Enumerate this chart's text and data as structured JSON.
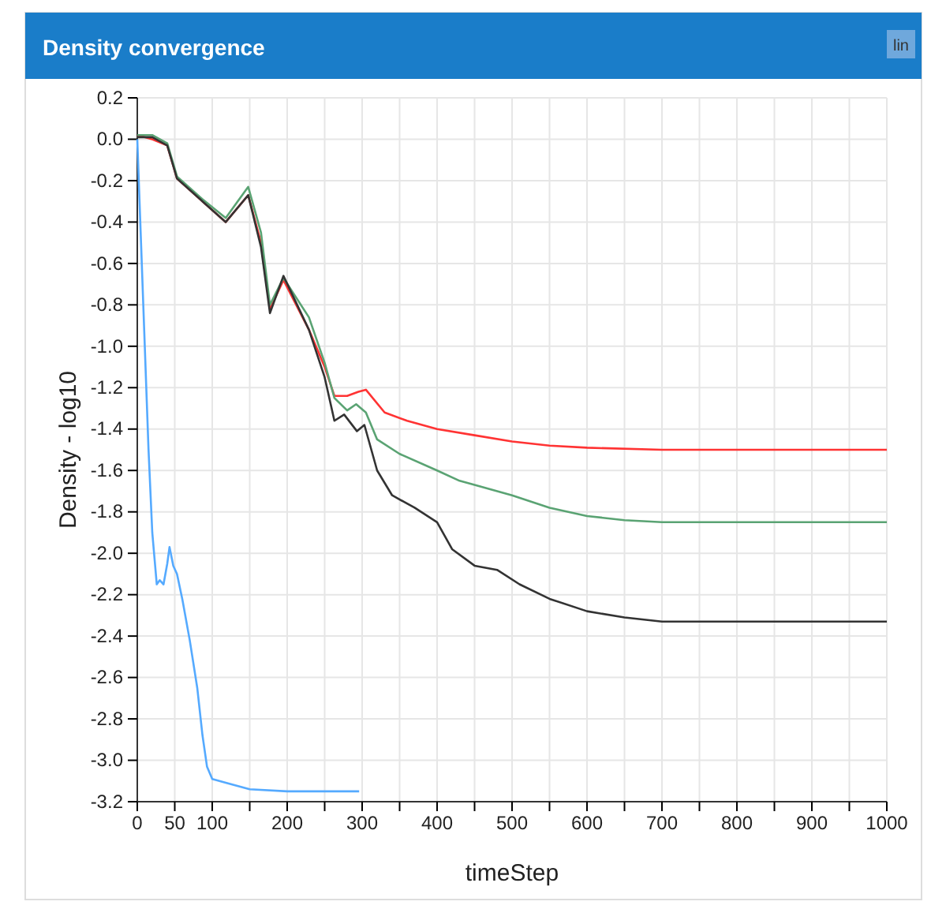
{
  "chart_data": {
    "type": "line",
    "title": "Density convergence",
    "xlabel": "timeStep",
    "ylabel": "Density - log10",
    "annotations": [
      "lin"
    ],
    "xlim": [
      0,
      1000
    ],
    "ylim": [
      -3.2,
      0.2
    ],
    "xticks": [
      0,
      50,
      100,
      {
        "value": 150,
        "label": null
      },
      200,
      {
        "value": 250,
        "label": null
      },
      300,
      {
        "value": 350,
        "label": null
      },
      400,
      {
        "value": 450,
        "label": null
      },
      500,
      {
        "value": 550,
        "label": null
      },
      600,
      {
        "value": 650,
        "label": null
      },
      700,
      {
        "value": 750,
        "label": null
      },
      800,
      {
        "value": 850,
        "label": null
      },
      900,
      {
        "value": 950,
        "label": null
      },
      1000
    ],
    "yticks": [
      0.2,
      {
        "value": 0,
        "label": "0.0"
      },
      -0.2,
      -0.4,
      -0.6,
      -0.8,
      {
        "value": -1,
        "label": "-1.0"
      },
      -1.2,
      -1.4,
      -1.6,
      -1.8,
      {
        "value": -2,
        "label": "-2.0"
      },
      -2.2,
      -2.4,
      -2.6,
      -2.8,
      {
        "value": -3,
        "label": "-3.0"
      },
      -3.2
    ],
    "grid": true,
    "marker": "none",
    "line_style": "solid",
    "series": [
      {
        "color": "#ff3333",
        "x": [
          0,
          20,
          40,
          53,
          87,
          118,
          148,
          165,
          177,
          195,
          229,
          250,
          263,
          280,
          295,
          305,
          330,
          360,
          400,
          450,
          500,
          550,
          600,
          700,
          800,
          900,
          1000
        ],
        "values": [
          0.02,
          0.0,
          -0.03,
          -0.19,
          -0.3,
          -0.4,
          -0.27,
          -0.5,
          -0.82,
          -0.68,
          -0.92,
          -1.1,
          -1.24,
          -1.24,
          -1.22,
          -1.21,
          -1.32,
          -1.36,
          -1.4,
          -1.43,
          -1.46,
          -1.48,
          -1.49,
          -1.5,
          -1.5,
          -1.5,
          -1.5
        ]
      },
      {
        "color": "#5aa373",
        "x": [
          0,
          20,
          40,
          53,
          87,
          118,
          148,
          165,
          177,
          195,
          229,
          250,
          263,
          280,
          292,
          305,
          320,
          350,
          400,
          430,
          450,
          500,
          550,
          600,
          650,
          700,
          800,
          900,
          1000
        ],
        "values": [
          0.02,
          0.02,
          -0.02,
          -0.18,
          -0.29,
          -0.38,
          -0.23,
          -0.45,
          -0.8,
          -0.67,
          -0.86,
          -1.08,
          -1.25,
          -1.31,
          -1.28,
          -1.32,
          -1.45,
          -1.52,
          -1.6,
          -1.65,
          -1.67,
          -1.72,
          -1.78,
          -1.82,
          -1.84,
          -1.85,
          -1.85,
          -1.85,
          -1.85
        ]
      },
      {
        "color": "#333333",
        "x": [
          0,
          20,
          40,
          53,
          87,
          118,
          148,
          165,
          177,
          195,
          229,
          250,
          263,
          276,
          293,
          303,
          320,
          340,
          370,
          400,
          420,
          450,
          480,
          510,
          550,
          600,
          650,
          700,
          800,
          900,
          1000
        ],
        "values": [
          0.01,
          0.01,
          -0.03,
          -0.19,
          -0.3,
          -0.4,
          -0.27,
          -0.52,
          -0.84,
          -0.66,
          -0.92,
          -1.15,
          -1.36,
          -1.33,
          -1.41,
          -1.38,
          -1.6,
          -1.72,
          -1.78,
          -1.85,
          -1.98,
          -2.06,
          -2.08,
          -2.15,
          -2.22,
          -2.28,
          -2.31,
          -2.33,
          -2.33,
          -2.33,
          -2.33
        ]
      },
      {
        "color": "#55aaff",
        "x": [
          0,
          5,
          10,
          15,
          20,
          26,
          30,
          35,
          40,
          43,
          48,
          53,
          60,
          70,
          80,
          87,
          93,
          100,
          120,
          150,
          200,
          250,
          296
        ],
        "values": [
          0.0,
          -0.5,
          -1.0,
          -1.5,
          -1.9,
          -2.15,
          -2.13,
          -2.15,
          -2.05,
          -1.97,
          -2.06,
          -2.1,
          -2.22,
          -2.42,
          -2.65,
          -2.88,
          -3.03,
          -3.09,
          -3.11,
          -3.14,
          -3.15,
          -3.15,
          -3.15
        ]
      }
    ]
  }
}
